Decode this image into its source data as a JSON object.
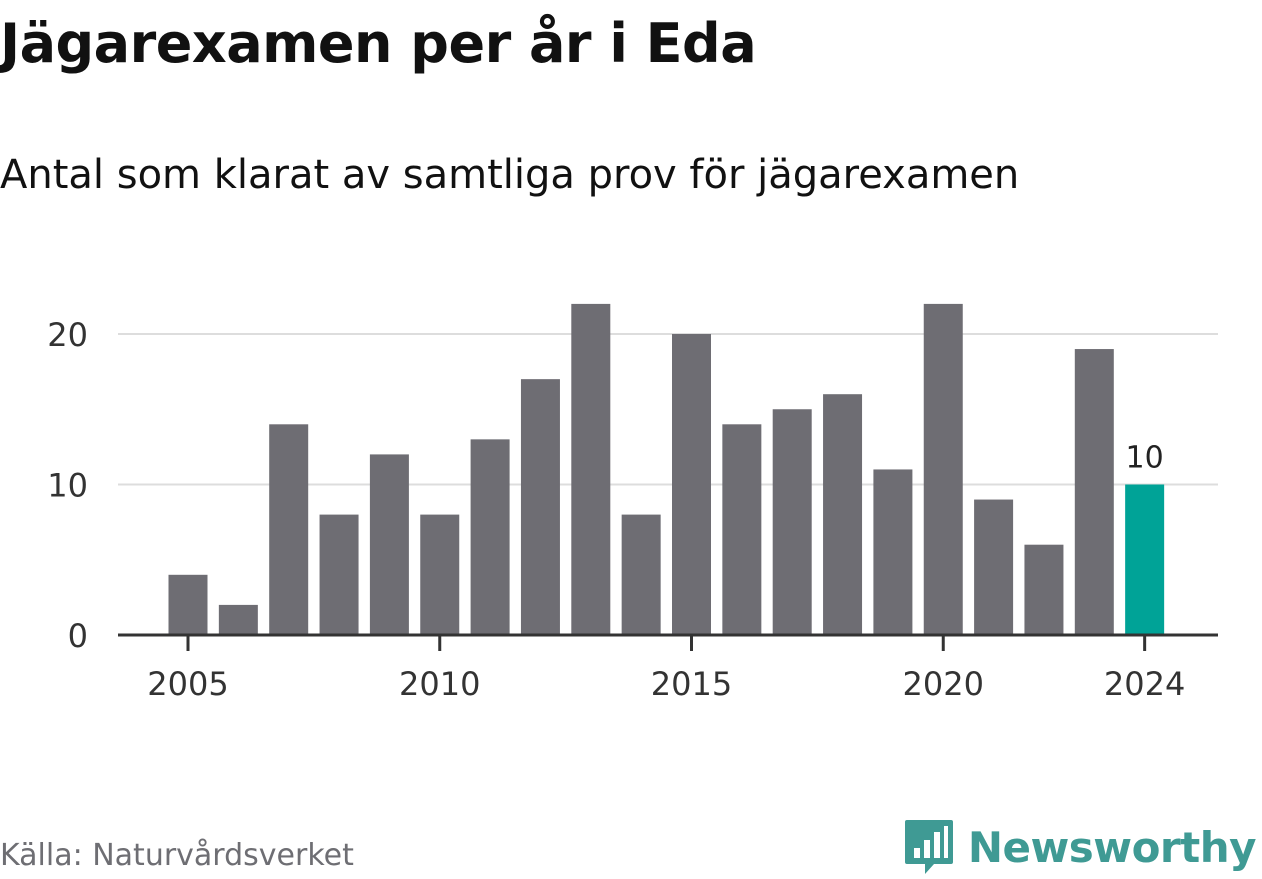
{
  "header": {
    "title": "Jägarexamen per år i Eda",
    "subtitle": "Antal som klarat av samtliga prov för jägarexamen"
  },
  "footer": {
    "source": "Källa: Naturvårdsverket",
    "brand": "Newsworthy",
    "brand_icon": "bar-chart-speech-bubble-icon"
  },
  "colors": {
    "bar": "#6e6d73",
    "highlight": "#00a397",
    "gridline": "#dddddd",
    "axis": "#333333",
    "brand": "#3f9a94"
  },
  "chart_data": {
    "type": "bar",
    "title": "Jägarexamen per år i Eda",
    "subtitle": "Antal som klarat av samtliga prov för jägarexamen",
    "xlabel": "",
    "ylabel": "",
    "categories": [
      2005,
      2006,
      2007,
      2008,
      2009,
      2010,
      2011,
      2012,
      2013,
      2014,
      2015,
      2016,
      2017,
      2018,
      2019,
      2020,
      2021,
      2022,
      2023,
      2024
    ],
    "values": [
      4,
      2,
      14,
      8,
      12,
      8,
      13,
      17,
      22,
      8,
      20,
      14,
      15,
      16,
      11,
      22,
      9,
      6,
      19,
      10
    ],
    "highlight_category": 2024,
    "data_labels": [
      {
        "category": 2024,
        "text": "10"
      }
    ],
    "x_ticks": [
      2005,
      2010,
      2015,
      2020,
      2024
    ],
    "y_ticks": [
      0,
      10,
      20
    ],
    "ylim": [
      0,
      22
    ],
    "grid": true,
    "legend": "none"
  }
}
